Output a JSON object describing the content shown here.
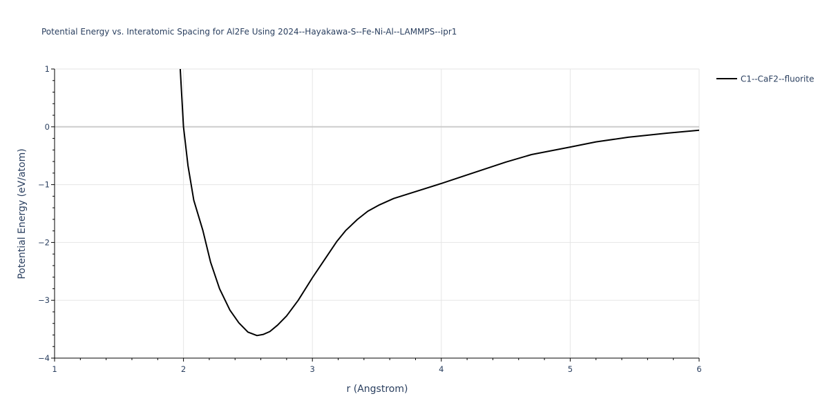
{
  "chart_data": {
    "type": "line",
    "title": "Potential Energy vs. Interatomic Spacing for Al2Fe Using 2024--Hayakawa-S--Fe-Ni-Al--LAMMPS--ipr1",
    "xlabel": "r (Angstrom)",
    "ylabel": "Potential Energy (eV/atom)",
    "xlim": [
      1,
      6
    ],
    "ylim": [
      -4,
      1
    ],
    "xticks": [
      1,
      2,
      3,
      4,
      5,
      6
    ],
    "yticks": [
      1,
      0,
      -1,
      -2,
      -3,
      -4
    ],
    "ytick_labels": [
      "1",
      "0",
      "−1",
      "−2",
      "−3",
      "−4"
    ],
    "grid": true,
    "legend_position": "top-right-outside",
    "series": [
      {
        "name": "C1--CaF2--fluorite",
        "color": "#000000",
        "x": [
          1.975,
          2.0,
          2.035,
          2.08,
          2.15,
          2.21,
          2.28,
          2.36,
          2.43,
          2.5,
          2.57,
          2.62,
          2.67,
          2.73,
          2.8,
          2.89,
          3.0,
          3.19,
          3.26,
          3.35,
          3.43,
          3.52,
          3.63,
          4.0,
          4.5,
          4.7,
          5.0,
          5.2,
          5.45,
          5.75,
          6.0
        ],
        "y": [
          1.0,
          0.0,
          -0.67,
          -1.27,
          -1.79,
          -2.34,
          -2.8,
          -3.17,
          -3.39,
          -3.55,
          -3.61,
          -3.59,
          -3.54,
          -3.43,
          -3.27,
          -3.0,
          -2.61,
          -1.98,
          -1.79,
          -1.6,
          -1.46,
          -1.35,
          -1.24,
          -0.98,
          -0.61,
          -0.48,
          -0.35,
          -0.26,
          -0.18,
          -0.11,
          -0.06
        ]
      }
    ]
  },
  "plot": {
    "background": "#ffffff",
    "grid_color": "#e5e5e5",
    "zero_line_color": "#cccccc",
    "text_color": "#2a3f5f"
  }
}
